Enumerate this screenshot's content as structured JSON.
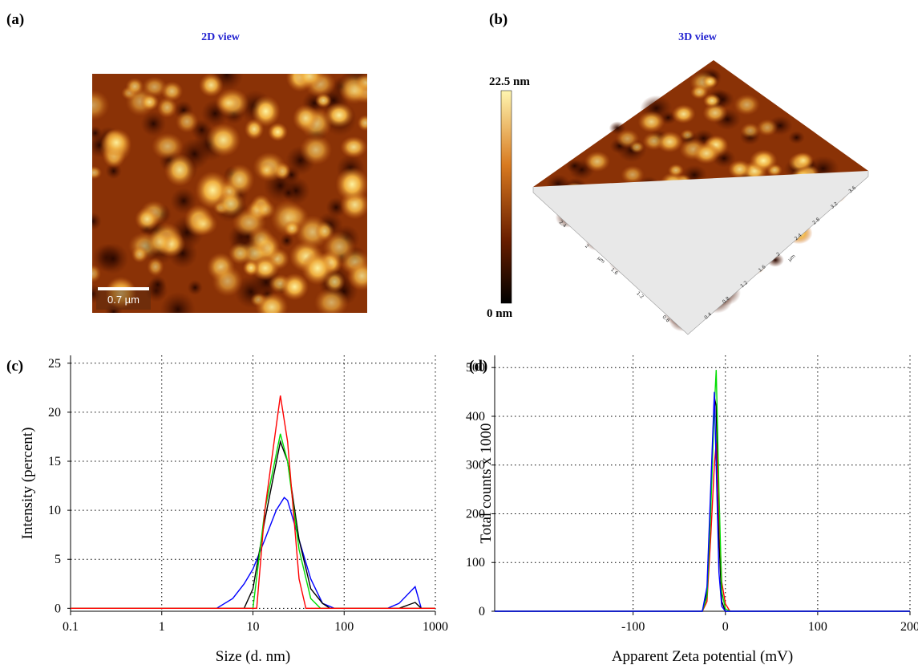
{
  "panels": {
    "a": {
      "label": "(a)",
      "title": "2D view",
      "scale_bar": "0.7 µm"
    },
    "b": {
      "label": "(b)",
      "title": "3D view",
      "colorbar_max": "22.5 nm",
      "colorbar_min": "0 nm",
      "right_axis_ticks": [
        "0.4",
        "0.8",
        "1.2",
        "1.6",
        "2",
        "2.4",
        "2.8",
        "3.2",
        "3.6"
      ],
      "right_axis_unit": "µm",
      "left_axis_ticks": [
        "2.4",
        "2",
        "1.6",
        "1.2",
        "0.8"
      ],
      "left_axis_unit": "µm"
    }
  },
  "chart_data": [
    {
      "type": "line",
      "panel_label": "(c)",
      "x_label": "Size (d. nm)",
      "y_label": "Intensity (percent)",
      "xscale": "log",
      "xlim": [
        0.1,
        1000
      ],
      "ylim": [
        -0.3,
        25.8
      ],
      "xticks": [
        0.1,
        1,
        10,
        100,
        1000
      ],
      "yticks": [
        0,
        5,
        10,
        15,
        20,
        25
      ],
      "grid": true,
      "series": [
        {
          "color": "#0000ff",
          "x": [
            0.1,
            4,
            6,
            8,
            10,
            13.5,
            18,
            22,
            24,
            32,
            43,
            58,
            78,
            300,
            400,
            600,
            700,
            1000
          ],
          "values": [
            0,
            0,
            1,
            2.5,
            4,
            7,
            10,
            11.3,
            11,
            7,
            3,
            0.5,
            0,
            0,
            0.5,
            2.2,
            0,
            0
          ]
        },
        {
          "color": "#000000",
          "x": [
            0.1,
            8,
            10,
            13.5,
            20,
            24,
            32,
            43,
            58,
            70,
            400,
            600,
            700,
            1000
          ],
          "values": [
            0,
            0,
            2,
            9,
            17,
            15,
            7,
            2,
            0.5,
            0,
            0,
            0.6,
            0,
            0
          ]
        },
        {
          "color": "#00dd00",
          "x": [
            0.1,
            10,
            13.5,
            20,
            24,
            32,
            43,
            55,
            1000
          ],
          "values": [
            0,
            0,
            10,
            17.8,
            15,
            6,
            1,
            0,
            0
          ]
        },
        {
          "color": "#ff0000",
          "x": [
            0.1,
            11,
            13.5,
            20,
            24,
            32,
            38,
            1000
          ],
          "values": [
            0,
            0,
            10,
            21.7,
            17,
            3,
            0,
            0
          ]
        }
      ]
    },
    {
      "type": "line",
      "panel_label": "(d)",
      "x_label": "Apparent Zeta potential (mV)",
      "y_label": "Total counts x 1000",
      "xlim": [
        -250,
        200
      ],
      "ylim": [
        0,
        525
      ],
      "xticks": [
        -100,
        0,
        100,
        200
      ],
      "yticks": [
        0,
        100,
        200,
        300,
        400,
        500
      ],
      "grid": true,
      "series": [
        {
          "color": "#000000",
          "x": [
            -250,
            -25,
            -20,
            -16,
            -12,
            -10,
            -7,
            -4,
            0,
            5,
            200
          ],
          "values": [
            0,
            0,
            40,
            230,
            440,
            420,
            150,
            20,
            0,
            0,
            0
          ]
        },
        {
          "color": "#ff0000",
          "x": [
            -250,
            -25,
            -20,
            -16,
            -12,
            -10,
            -7,
            -4,
            0,
            5,
            200
          ],
          "values": [
            0,
            0,
            20,
            150,
            300,
            345,
            200,
            60,
            15,
            0,
            0
          ]
        },
        {
          "color": "#00dd00",
          "x": [
            -250,
            -25,
            -20,
            -16,
            -12,
            -10,
            -7,
            -4,
            0,
            5,
            200
          ],
          "values": [
            0,
            0,
            30,
            200,
            420,
            495,
            250,
            40,
            5,
            0,
            0
          ]
        },
        {
          "color": "#0000ff",
          "x": [
            -250,
            -25,
            -20,
            -16,
            -12,
            -10,
            -7,
            -4,
            0,
            5,
            200
          ],
          "values": [
            0,
            0,
            50,
            250,
            450,
            300,
            80,
            10,
            0,
            0,
            0
          ]
        }
      ]
    }
  ]
}
